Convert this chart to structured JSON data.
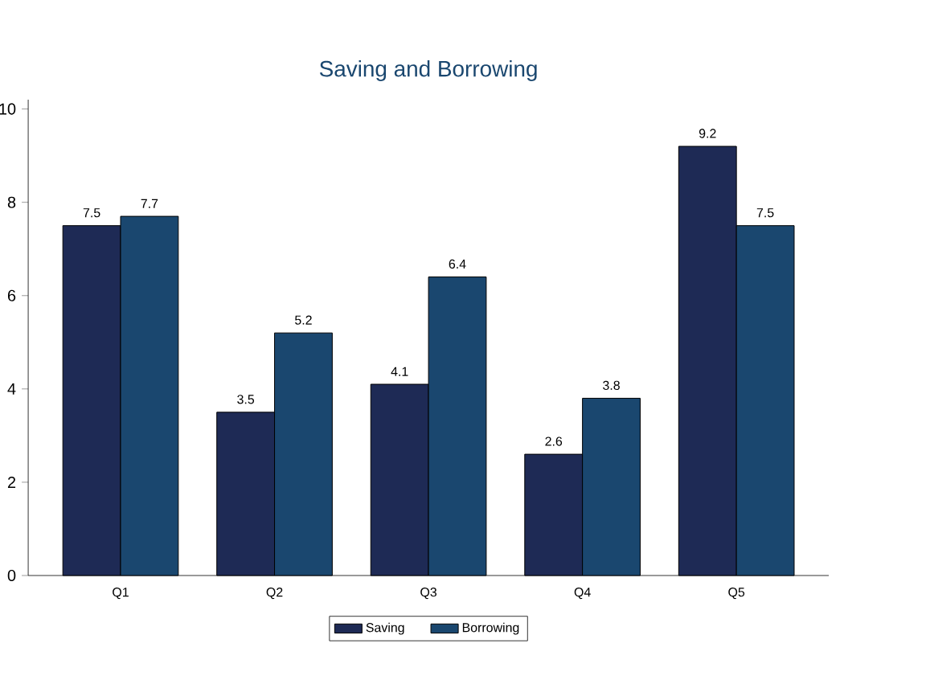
{
  "chart_data": {
    "type": "bar",
    "title": "Saving and Borrowing",
    "categories": [
      "Q1",
      "Q2",
      "Q3",
      "Q4",
      "Q5"
    ],
    "series": [
      {
        "name": "Saving",
        "color": "#1e2a55",
        "values": [
          7.5,
          3.5,
          4.1,
          2.6,
          9.2
        ]
      },
      {
        "name": "Borrowing",
        "color": "#1a476f",
        "values": [
          7.7,
          5.2,
          6.4,
          3.8,
          7.5
        ]
      }
    ],
    "ylim": [
      0,
      10.2
    ],
    "yticks": [
      0,
      2,
      4,
      6,
      8,
      10
    ],
    "data_labels": true,
    "legend": "bottom",
    "grid": false
  }
}
